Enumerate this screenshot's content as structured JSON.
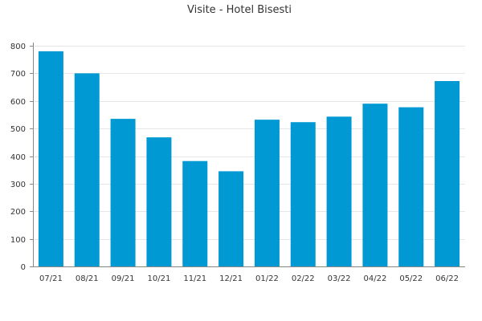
{
  "chart_data": {
    "type": "bar",
    "title": "Visite - Hotel Bisesti",
    "xlabel": "",
    "ylabel": "",
    "categories": [
      "07/21",
      "08/21",
      "09/21",
      "10/21",
      "11/21",
      "12/21",
      "01/22",
      "02/22",
      "03/22",
      "04/22",
      "05/22",
      "06/22"
    ],
    "values": [
      780,
      700,
      535,
      468,
      382,
      345,
      532,
      523,
      543,
      590,
      577,
      672
    ],
    "ylim": [
      0,
      800
    ],
    "yticks": [
      0,
      100,
      200,
      300,
      400,
      500,
      600,
      700,
      800
    ],
    "grid": true,
    "legend": "none",
    "colors": {
      "bar": "#0099d3",
      "grid": "#e6e6e6",
      "axis": "#888888",
      "text": "#333333"
    }
  }
}
